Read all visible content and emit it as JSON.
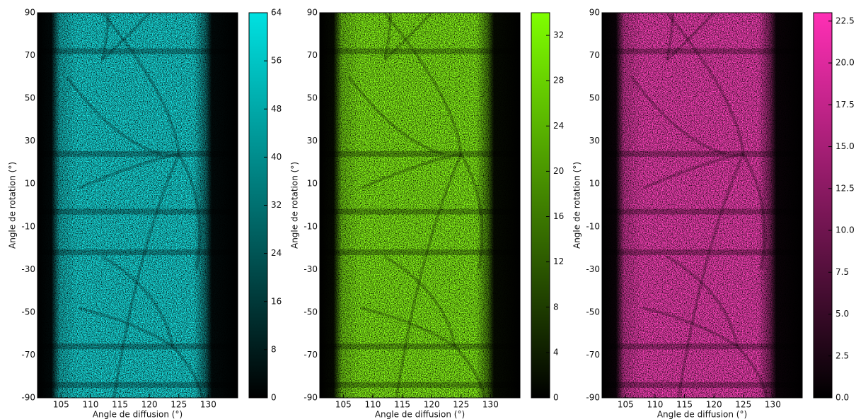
{
  "chart_data": [
    {
      "type": "heatmap",
      "x_label": "Angle de diffusion (°)",
      "y_label": "Angle de rotation (°)",
      "xlim": [
        101,
        135
      ],
      "xticks": [
        105,
        110,
        115,
        120,
        125,
        130
      ],
      "ylim": [
        -90,
        90
      ],
      "yticks": [
        -90,
        -70,
        -50,
        -30,
        -10,
        10,
        30,
        50,
        70,
        90
      ],
      "colorbar": {
        "clim": [
          0,
          64
        ],
        "ticks": [
          0,
          8,
          16,
          24,
          32,
          40,
          48,
          56,
          64
        ],
        "color": "#00e1e1"
      }
    },
    {
      "type": "heatmap",
      "x_label": "Angle de diffusion (°)",
      "y_label": "Angle de rotation (°)",
      "xlim": [
        101,
        135
      ],
      "xticks": [
        105,
        110,
        115,
        120,
        125,
        130
      ],
      "ylim": [
        -90,
        90
      ],
      "yticks": [
        -90,
        -70,
        -50,
        -30,
        -10,
        10,
        30,
        50,
        70,
        90
      ],
      "colorbar": {
        "clim": [
          0,
          34
        ],
        "ticks": [
          0,
          4,
          8,
          12,
          16,
          20,
          24,
          28,
          32
        ],
        "color": "#7fff00"
      }
    },
    {
      "type": "heatmap",
      "x_label": "Angle de diffusion (°)",
      "y_label": "Angle de rotation (°)",
      "xlim": [
        101,
        135
      ],
      "xticks": [
        105,
        110,
        115,
        120,
        125,
        130
      ],
      "ylim": [
        -90,
        90
      ],
      "yticks": [
        -90,
        -70,
        -50,
        -30,
        -10,
        10,
        30,
        50,
        70,
        90
      ],
      "colorbar": {
        "clim": [
          0,
          23
        ],
        "ticks": [
          {
            "value": 0,
            "label": "0.0"
          },
          2.5,
          {
            "value": 5,
            "label": "5.0"
          },
          7.5,
          {
            "value": 10,
            "label": "10.0"
          },
          12.5,
          {
            "value": 15,
            "label": "15.0"
          },
          17.5,
          {
            "value": 20,
            "label": "20.0"
          },
          22.5
        ],
        "color": "#ff2fb5"
      }
    }
  ]
}
